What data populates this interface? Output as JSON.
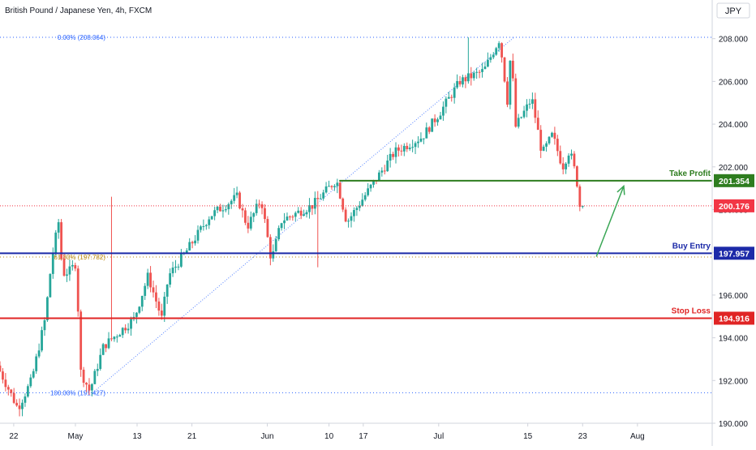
{
  "header": {
    "symbol_title": "British Pound / Japanese Yen, 4h, FXCM"
  },
  "currency_button": {
    "label": "JPY"
  },
  "chart_data": {
    "type": "candlestick",
    "title": "British Pound / Japanese Yen, 4h, FXCM",
    "currency": "JPY",
    "ylim": [
      190.0,
      209.0
    ],
    "y_ticks": [
      {
        "value": 190.0,
        "label": "190.000"
      },
      {
        "value": 192.0,
        "label": "192.000"
      },
      {
        "value": 194.0,
        "label": "194.000"
      },
      {
        "value": 196.0,
        "label": "196.000"
      },
      {
        "value": 198.0,
        "label": "198.000"
      },
      {
        "value": 200.0,
        "label": "200.000"
      },
      {
        "value": 202.0,
        "label": "202.000"
      },
      {
        "value": 204.0,
        "label": "204.000"
      },
      {
        "value": 206.0,
        "label": "206.000"
      },
      {
        "value": 208.0,
        "label": "208.000"
      }
    ],
    "x_ticks": [
      "22",
      "May",
      "13",
      "21",
      "Jun",
      "10",
      "17",
      "Jul",
      "15",
      "23",
      "Aug"
    ],
    "x_range": [
      0,
      100
    ],
    "x_tick_positions": [
      2,
      11,
      20,
      28,
      39,
      48,
      53,
      64,
      77,
      85,
      93
    ],
    "candle_count": 210,
    "candle_x_span": [
      0,
      85
    ],
    "price_path": [
      [
        0,
        192.7
      ],
      [
        3,
        190.7
      ],
      [
        5,
        192.0
      ],
      [
        7,
        194.9
      ],
      [
        8,
        197.8
      ],
      [
        9,
        199.5
      ],
      [
        9.5,
        197.0
      ],
      [
        10.5,
        197.1
      ],
      [
        11.5,
        197.5
      ],
      [
        12.2,
        192.4
      ],
      [
        13.5,
        191.5
      ],
      [
        15.5,
        193.6
      ],
      [
        20,
        194.9
      ],
      [
        22,
        196.9
      ],
      [
        24,
        194.9
      ],
      [
        25,
        196.9
      ],
      [
        27.5,
        198.0
      ],
      [
        31,
        199.7
      ],
      [
        35,
        200.6
      ],
      [
        36.5,
        199.2
      ],
      [
        38.5,
        200.5
      ],
      [
        40,
        197.6
      ],
      [
        41.5,
        199.5
      ],
      [
        46,
        200.2
      ],
      [
        49.5,
        201.4
      ],
      [
        51,
        199.4
      ],
      [
        55,
        201.3
      ],
      [
        58,
        202.7
      ],
      [
        62,
        203.4
      ],
      [
        64.5,
        204.5
      ],
      [
        67.5,
        206.0
      ],
      [
        71,
        206.5
      ],
      [
        73.3,
        208.0
      ],
      [
        74.5,
        204.9
      ],
      [
        75,
        208.0
      ],
      [
        75.5,
        203.8
      ],
      [
        78,
        205.2
      ],
      [
        79.5,
        202.6
      ],
      [
        81,
        203.5
      ],
      [
        82.5,
        202.0
      ],
      [
        83.5,
        202.8
      ],
      [
        84.5,
        201.5
      ],
      [
        85,
        200.176
      ]
    ],
    "levels": [
      {
        "name": "Take Profit",
        "value": 201.354,
        "price_label": "201.354",
        "color": "#2e7d1f"
      },
      {
        "name": "Buy Entry",
        "value": 197.957,
        "price_label": "197.957",
        "color": "#1c2aa8"
      },
      {
        "name": "Stop Loss",
        "value": 194.916,
        "price_label": "194.916",
        "color": "#e02424"
      }
    ],
    "current_price": {
      "value": 200.176,
      "price_label": "200.176",
      "color": "#f23645"
    },
    "fibonacci": [
      {
        "label": "0.00% (208.064)",
        "value": 208.064,
        "color": "#2962ff"
      },
      {
        "label": "61.80% (197.782)",
        "value": 197.782,
        "color": "#b8860b"
      },
      {
        "label": "100.00% (191.427)",
        "value": 191.427,
        "color": "#2962ff"
      }
    ],
    "trendline": {
      "from": [
        13.5,
        191.427
      ],
      "to": [
        75,
        208.064
      ],
      "color": "#2962ff"
    },
    "arrow": {
      "from": [
        87,
        197.8
      ],
      "to": [
        91,
        201.1
      ],
      "color": "#3aa655"
    },
    "colors": {
      "up": "#26a69a",
      "down": "#ef5350"
    },
    "grid": false
  }
}
